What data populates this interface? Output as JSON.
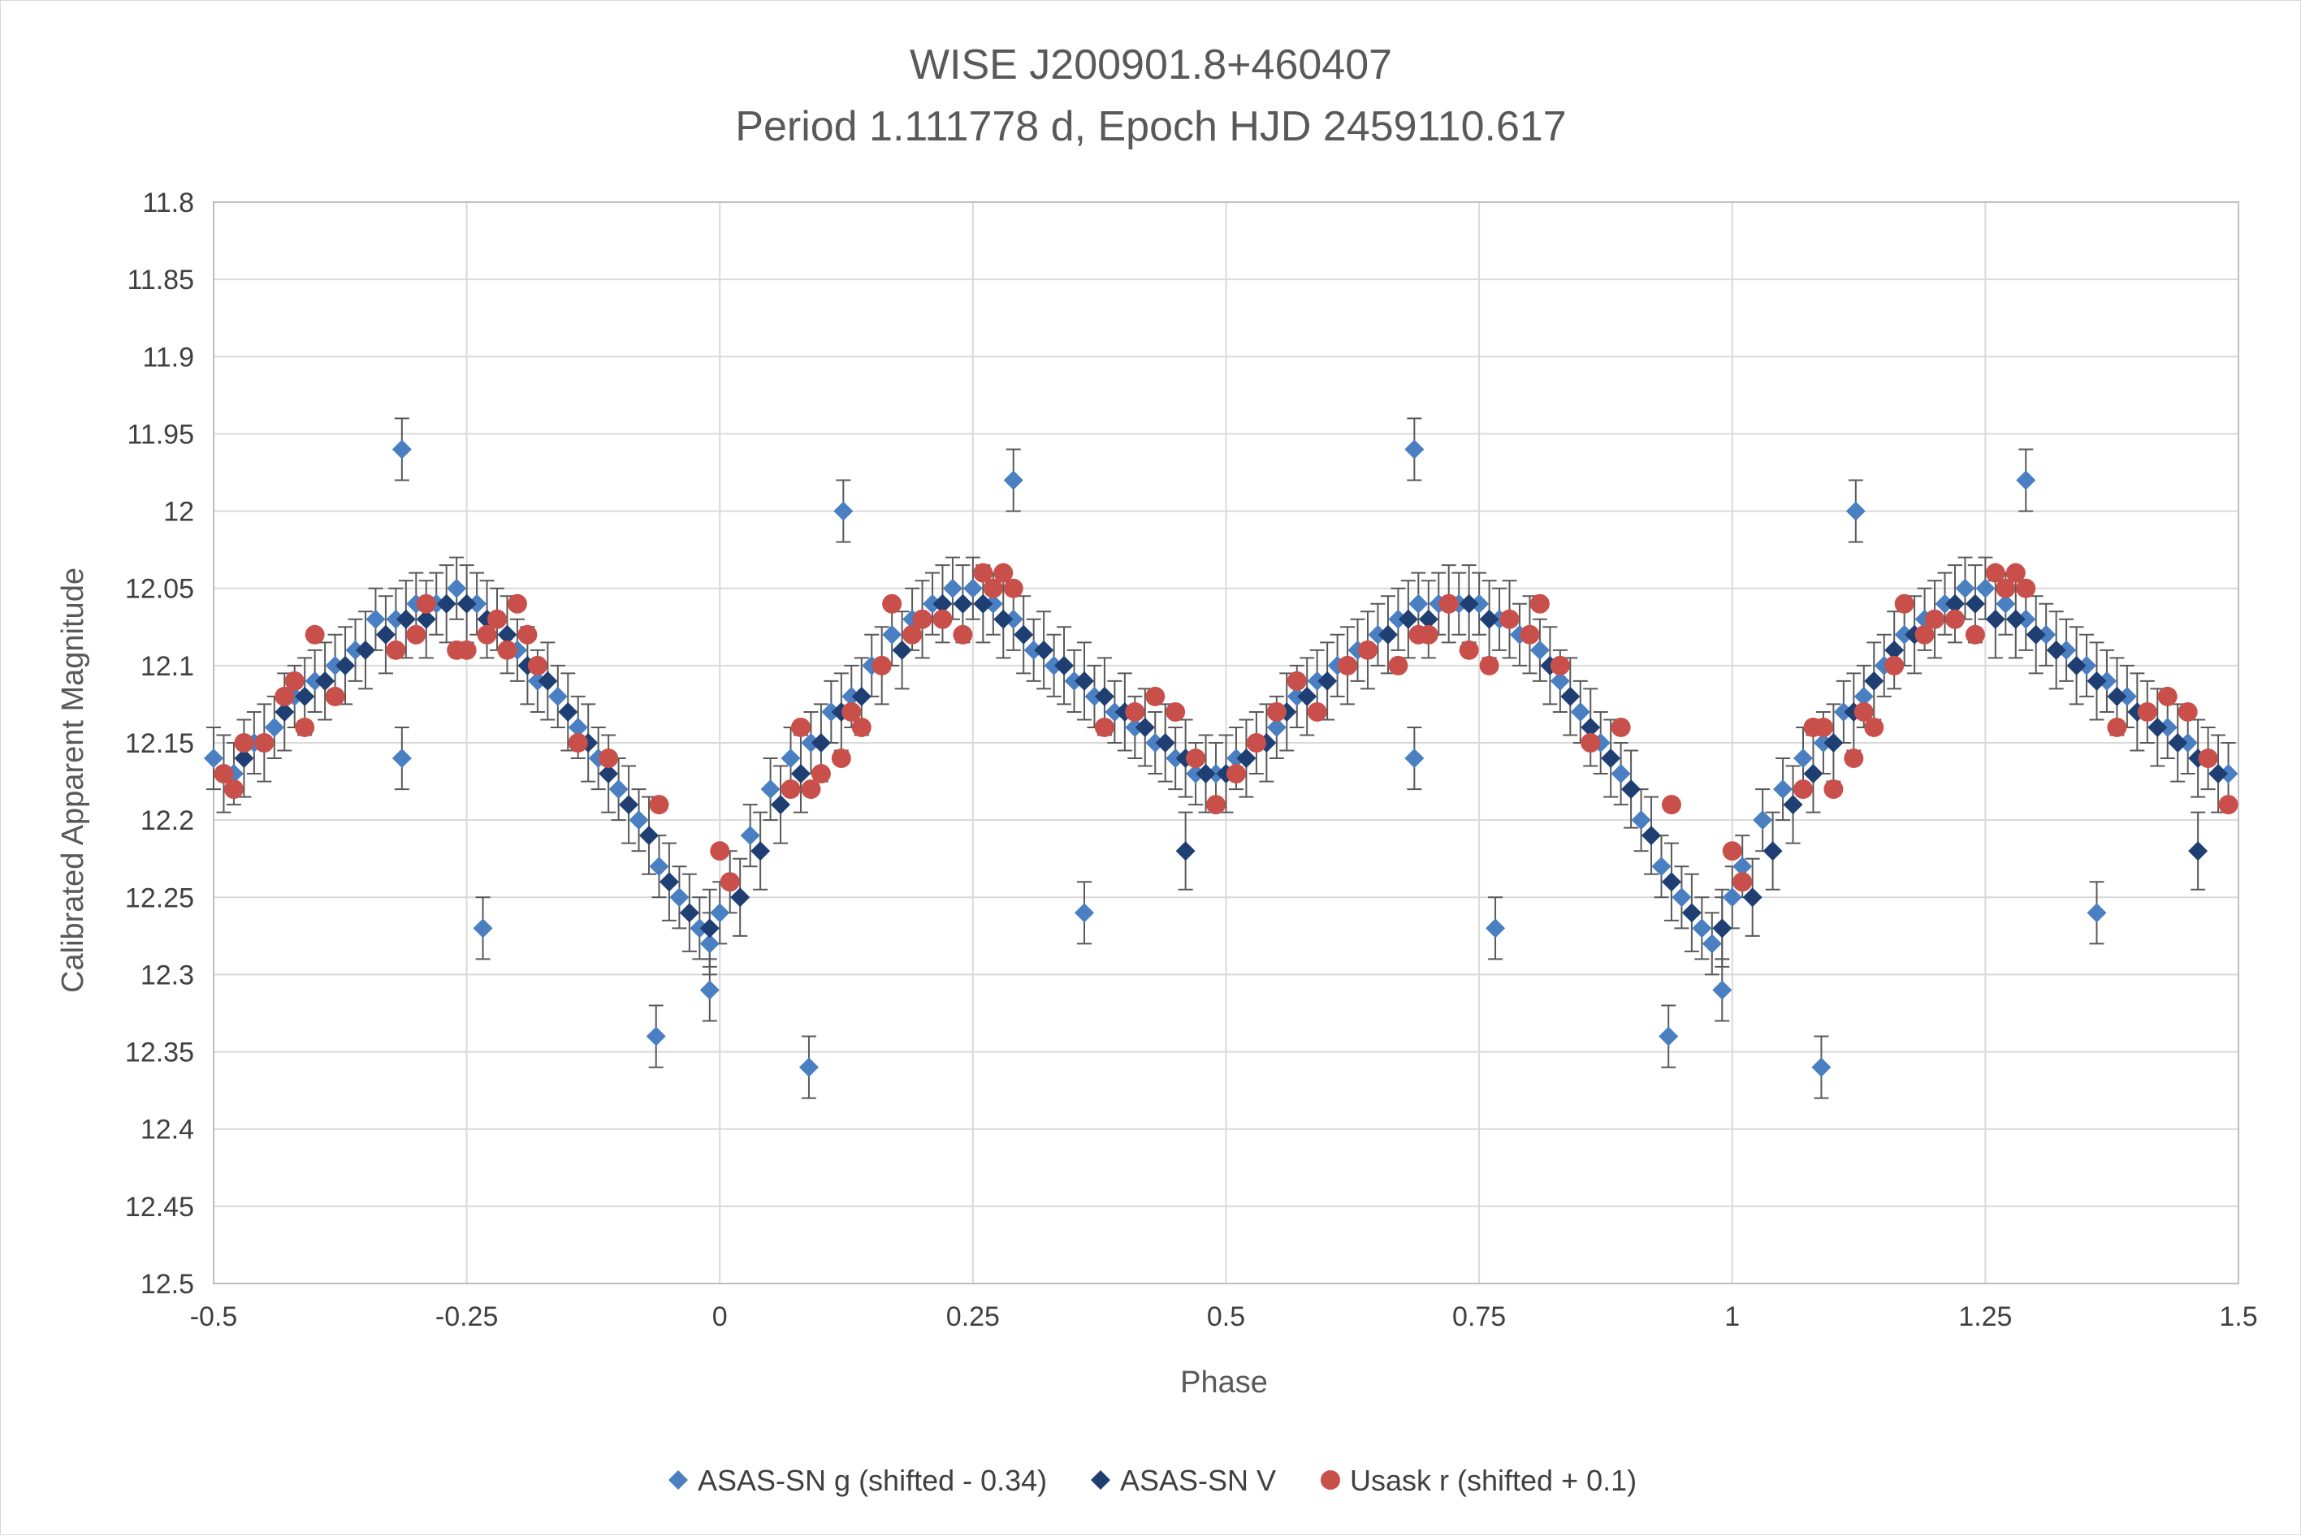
{
  "chart_data": {
    "type": "scatter",
    "title": "WISE J200901.8+460407",
    "subtitle": "Period 1.111778 d, Epoch HJD 2459110.617",
    "xlabel": "Phase",
    "ylabel": "Calibrated Apparent Magnitude",
    "xlim": [
      -0.5,
      1.5
    ],
    "ylim": [
      11.8,
      12.5
    ],
    "y_inverted": true,
    "grid": true,
    "legend_position": "bottom",
    "x_ticks": [
      "-0.5",
      "-0.25",
      "0",
      "0.25",
      "0.5",
      "0.75",
      "1",
      "1.25",
      "1.5"
    ],
    "y_ticks": [
      "11.8",
      "11.85",
      "11.9",
      "11.95",
      "12",
      "12.05",
      "12.1",
      "12.15",
      "12.2",
      "12.25",
      "12.3",
      "12.35",
      "12.4",
      "12.45",
      "12.5"
    ],
    "error_bar_color": "#595959",
    "series": [
      {
        "name": "ASAS-SN g (shifted - 0.34)",
        "marker": "diamond",
        "color": "#4a7fc1",
        "error": 0.02,
        "x": [
          -0.5,
          -0.48,
          -0.46,
          -0.44,
          -0.42,
          -0.4,
          -0.38,
          -0.36,
          -0.34,
          -0.32,
          -0.3,
          -0.28,
          -0.26,
          -0.24,
          -0.22,
          -0.2,
          -0.18,
          -0.16,
          -0.14,
          -0.12,
          -0.1,
          -0.08,
          -0.06,
          -0.04,
          -0.02,
          -0.01,
          0.0,
          0.01,
          0.03,
          0.05,
          0.07,
          0.09,
          0.11,
          0.13,
          0.15,
          0.17,
          0.19,
          0.21,
          0.23,
          0.25,
          0.27,
          0.29,
          0.31,
          0.33,
          0.35,
          0.37,
          0.39,
          0.41,
          0.43,
          0.45,
          0.47,
          0.49,
          0.51,
          0.53,
          0.55,
          0.57,
          0.59,
          0.61,
          0.63,
          0.65,
          0.67,
          0.69,
          0.71,
          0.73,
          0.75,
          0.77,
          0.79,
          0.81,
          0.83,
          0.85,
          0.87,
          0.89,
          0.91,
          0.93,
          0.95,
          0.97,
          0.98,
          0.99,
          1.0,
          1.01,
          1.03,
          1.05,
          1.07,
          1.09,
          1.11,
          1.13,
          1.15,
          1.17,
          1.19,
          1.21,
          1.23,
          1.25,
          1.27,
          1.29,
          1.31,
          1.33,
          1.35,
          1.37,
          1.39,
          1.41,
          1.43,
          1.45,
          1.47,
          1.49,
          -0.314,
          -0.314,
          -0.234,
          -0.063,
          0.088,
          0.122,
          0.36,
          0.686,
          0.686,
          0.766,
          0.937,
          1.088,
          1.122,
          1.36,
          0.29,
          1.29,
          -0.01,
          0.99
        ],
        "y": [
          12.16,
          12.17,
          12.15,
          12.14,
          12.12,
          12.11,
          12.1,
          12.09,
          12.07,
          12.07,
          12.06,
          12.06,
          12.05,
          12.06,
          12.07,
          12.09,
          12.11,
          12.12,
          12.14,
          12.16,
          12.18,
          12.2,
          12.23,
          12.25,
          12.27,
          12.28,
          12.26,
          12.24,
          12.21,
          12.18,
          12.16,
          12.15,
          12.13,
          12.12,
          12.1,
          12.08,
          12.07,
          12.06,
          12.05,
          12.05,
          12.06,
          12.07,
          12.09,
          12.1,
          12.11,
          12.12,
          12.13,
          12.14,
          12.15,
          12.16,
          12.17,
          12.17,
          12.16,
          12.15,
          12.14,
          12.12,
          12.11,
          12.1,
          12.09,
          12.08,
          12.07,
          12.06,
          12.06,
          12.06,
          12.06,
          12.07,
          12.08,
          12.09,
          12.11,
          12.13,
          12.15,
          12.17,
          12.2,
          12.23,
          12.25,
          12.27,
          12.28,
          12.27,
          12.25,
          12.23,
          12.2,
          12.18,
          12.16,
          12.15,
          12.13,
          12.12,
          12.1,
          12.08,
          12.07,
          12.06,
          12.05,
          12.05,
          12.06,
          12.07,
          12.08,
          12.09,
          12.1,
          12.11,
          12.12,
          12.13,
          12.14,
          12.15,
          12.16,
          12.17,
          11.96,
          12.16,
          12.27,
          12.34,
          12.36,
          12.0,
          12.26,
          11.96,
          12.16,
          12.27,
          12.34,
          12.36,
          12.0,
          12.26,
          11.98,
          11.98,
          12.31,
          12.31
        ]
      },
      {
        "name": "ASAS-SN V",
        "marker": "diamond",
        "color": "#1f3f73",
        "error": 0.025,
        "x": [
          -0.49,
          -0.47,
          -0.45,
          -0.43,
          -0.41,
          -0.39,
          -0.37,
          -0.35,
          -0.33,
          -0.31,
          -0.29,
          -0.27,
          -0.25,
          -0.23,
          -0.21,
          -0.19,
          -0.17,
          -0.15,
          -0.13,
          -0.11,
          -0.09,
          -0.07,
          -0.05,
          -0.03,
          -0.01,
          0.02,
          0.04,
          0.06,
          0.08,
          0.1,
          0.12,
          0.14,
          0.16,
          0.18,
          0.2,
          0.22,
          0.24,
          0.26,
          0.28,
          0.3,
          0.32,
          0.34,
          0.36,
          0.38,
          0.4,
          0.42,
          0.44,
          0.46,
          0.48,
          0.5,
          0.52,
          0.54,
          0.56,
          0.58,
          0.6,
          0.62,
          0.64,
          0.66,
          0.68,
          0.7,
          0.72,
          0.74,
          0.76,
          0.78,
          0.8,
          0.82,
          0.84,
          0.86,
          0.88,
          0.9,
          0.92,
          0.94,
          0.96,
          0.99,
          1.02,
          1.04,
          1.06,
          1.08,
          1.1,
          1.12,
          1.14,
          1.16,
          1.18,
          1.2,
          1.22,
          1.24,
          1.26,
          1.28,
          1.3,
          1.32,
          1.34,
          1.36,
          1.38,
          1.4,
          1.42,
          1.44,
          1.46,
          1.48,
          0.46,
          1.46
        ],
        "y": [
          12.17,
          12.16,
          12.15,
          12.13,
          12.12,
          12.11,
          12.1,
          12.09,
          12.08,
          12.07,
          12.07,
          12.06,
          12.06,
          12.07,
          12.08,
          12.1,
          12.11,
          12.13,
          12.15,
          12.17,
          12.19,
          12.21,
          12.24,
          12.26,
          12.27,
          12.25,
          12.22,
          12.19,
          12.17,
          12.15,
          12.13,
          12.12,
          12.1,
          12.09,
          12.07,
          12.06,
          12.06,
          12.06,
          12.07,
          12.08,
          12.09,
          12.1,
          12.11,
          12.12,
          12.13,
          12.14,
          12.15,
          12.16,
          12.17,
          12.17,
          12.16,
          12.15,
          12.13,
          12.12,
          12.11,
          12.1,
          12.09,
          12.08,
          12.07,
          12.07,
          12.06,
          12.06,
          12.07,
          12.07,
          12.08,
          12.1,
          12.12,
          12.14,
          12.16,
          12.18,
          12.21,
          12.24,
          12.26,
          12.27,
          12.25,
          12.22,
          12.19,
          12.17,
          12.15,
          12.13,
          12.11,
          12.09,
          12.08,
          12.07,
          12.06,
          12.06,
          12.07,
          12.07,
          12.08,
          12.09,
          12.1,
          12.11,
          12.12,
          12.13,
          12.14,
          12.15,
          12.16,
          12.17,
          12.22,
          12.22
        ]
      },
      {
        "name": "Usask r (shifted + 0.1)",
        "marker": "circle",
        "color": "#c9504a",
        "x": [
          -0.49,
          -0.48,
          -0.47,
          -0.45,
          -0.43,
          -0.42,
          -0.41,
          -0.4,
          -0.38,
          -0.32,
          -0.3,
          -0.29,
          -0.26,
          -0.25,
          -0.23,
          -0.22,
          -0.21,
          -0.2,
          -0.19,
          -0.18,
          -0.14,
          -0.11,
          -0.06,
          0.0,
          0.01,
          0.07,
          0.08,
          0.09,
          0.1,
          0.12,
          0.13,
          0.14,
          0.16,
          0.17,
          0.19,
          0.2,
          0.22,
          0.24,
          0.26,
          0.27,
          0.28,
          0.29,
          0.38,
          0.41,
          0.43,
          0.45,
          0.47,
          0.49,
          0.51,
          0.53,
          0.55,
          0.57,
          0.59,
          0.62,
          0.64,
          0.67,
          0.69,
          0.7,
          0.72,
          0.74,
          0.76,
          0.78,
          0.8,
          0.81,
          0.83,
          0.86,
          0.89,
          0.94,
          1.0,
          1.01,
          1.07,
          1.08,
          1.09,
          1.1,
          1.12,
          1.13,
          1.14,
          1.16,
          1.17,
          1.19,
          1.2,
          1.22,
          1.24,
          1.26,
          1.27,
          1.28,
          1.29,
          1.38,
          1.41,
          1.43,
          1.45,
          1.47,
          1.49
        ],
        "y": [
          12.17,
          12.18,
          12.15,
          12.15,
          12.12,
          12.11,
          12.14,
          12.08,
          12.12,
          12.09,
          12.08,
          12.06,
          12.09,
          12.09,
          12.08,
          12.07,
          12.09,
          12.06,
          12.08,
          12.1,
          12.15,
          12.16,
          12.19,
          12.22,
          12.24,
          12.18,
          12.14,
          12.18,
          12.17,
          12.16,
          12.13,
          12.14,
          12.1,
          12.06,
          12.08,
          12.07,
          12.07,
          12.08,
          12.04,
          12.05,
          12.04,
          12.05,
          12.14,
          12.13,
          12.12,
          12.13,
          12.16,
          12.19,
          12.17,
          12.15,
          12.13,
          12.11,
          12.13,
          12.1,
          12.09,
          12.1,
          12.08,
          12.08,
          12.06,
          12.09,
          12.1,
          12.07,
          12.08,
          12.06,
          12.1,
          12.15,
          12.14,
          12.19,
          12.22,
          12.24,
          12.18,
          12.14,
          12.14,
          12.18,
          12.16,
          12.13,
          12.14,
          12.1,
          12.06,
          12.08,
          12.07,
          12.07,
          12.08,
          12.04,
          12.05,
          12.04,
          12.05,
          12.14,
          12.13,
          12.12,
          12.13,
          12.16,
          12.19
        ]
      }
    ]
  }
}
